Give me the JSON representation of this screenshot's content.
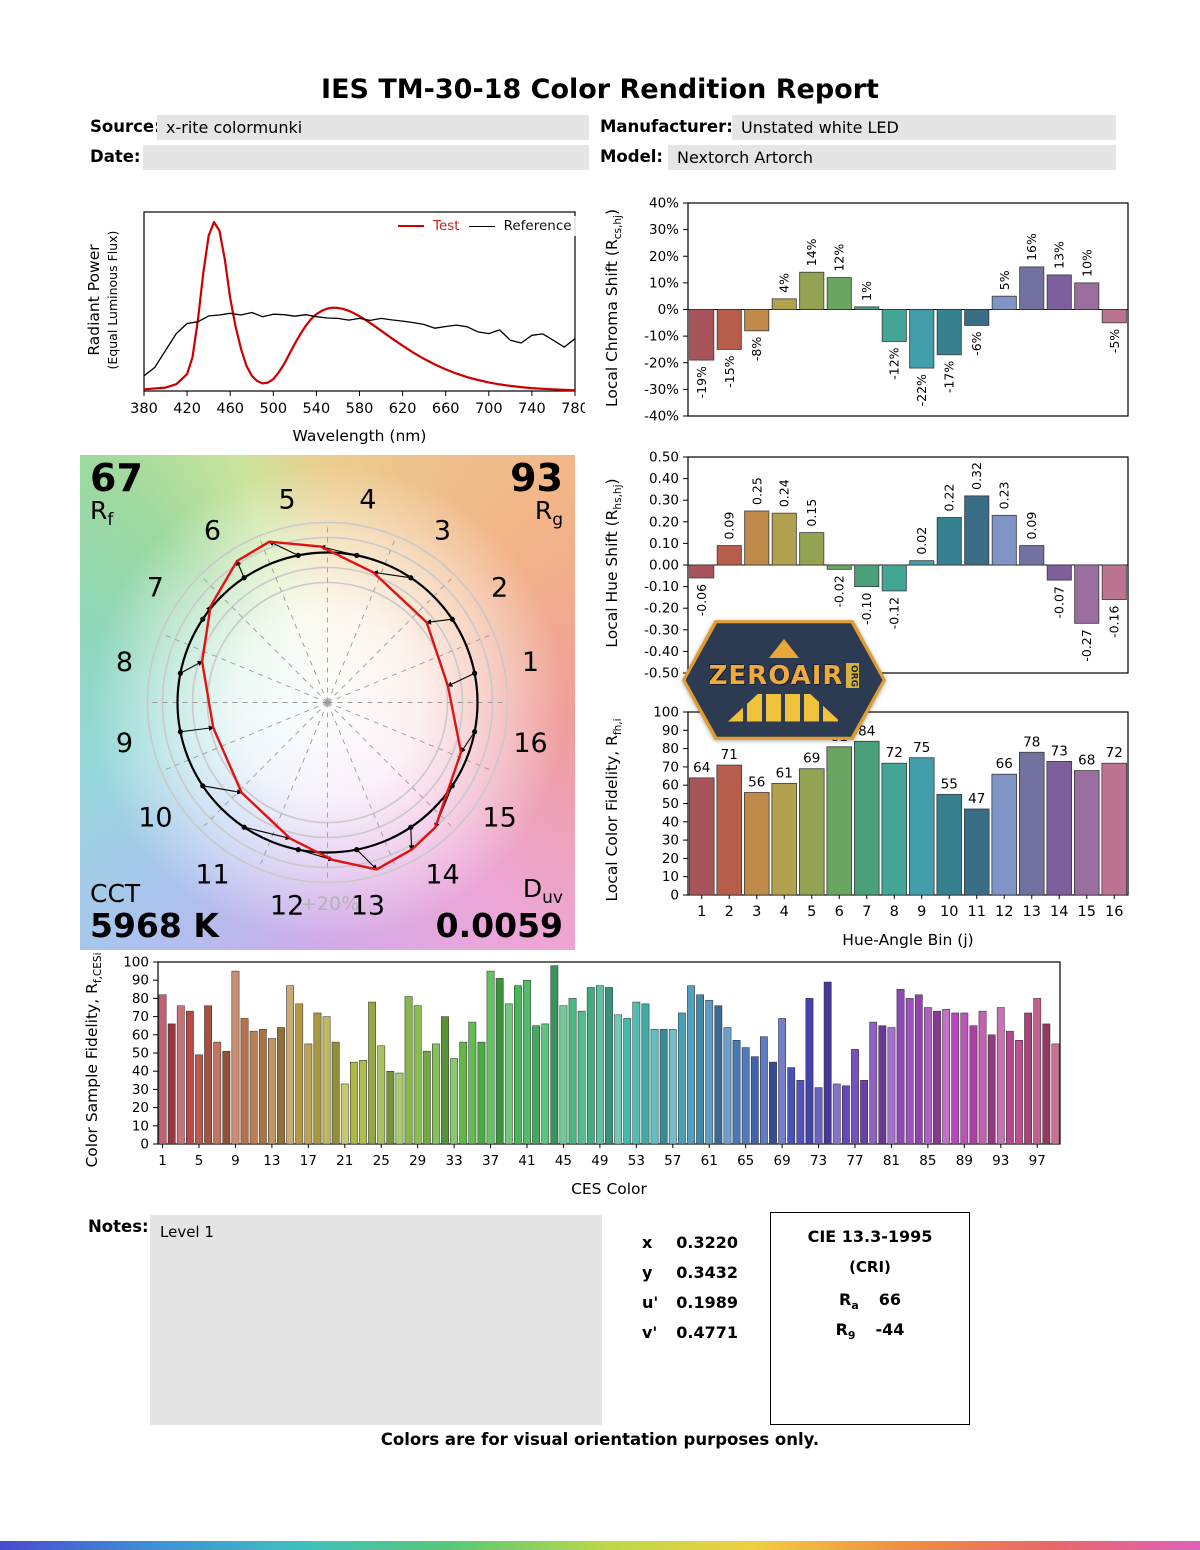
{
  "report": {
    "title": "IES TM-30-18 Color Rendition Report",
    "fields": {
      "source_label": "Source:",
      "source_value": "x-rite colormunki",
      "manufacturer_label": "Manufacturer:",
      "manufacturer_value": "Unstated white LED",
      "date_label": "Date:",
      "date_value": "",
      "model_label": "Model:",
      "model_value": "Nextorch Artorch"
    }
  },
  "hue_bin_colors": [
    "#a8545b",
    "#b65e4b",
    "#c08a4a",
    "#b2a14f",
    "#93a351",
    "#6aa562",
    "#49a079",
    "#43a596",
    "#419eaa",
    "#35818f",
    "#3a6d86",
    "#8095c6",
    "#73719f",
    "#7d5f9c",
    "#9a6f9f",
    "#bc7492"
  ],
  "chart_data": [
    {
      "id": "spd",
      "type": "line",
      "ylabel_line1": "Radiant Power",
      "ylabel_line2": "(Equal Luminous Flux)",
      "xlabel": "Wavelength (nm)",
      "xlim": [
        380,
        780
      ],
      "ylim": [
        0,
        1.06
      ],
      "xticks": [
        380,
        420,
        460,
        500,
        540,
        580,
        620,
        660,
        700,
        740,
        780
      ],
      "legend": [
        {
          "name": "Test",
          "color": "#cc0000"
        },
        {
          "name": "Reference",
          "color": "#000000"
        }
      ],
      "series": [
        {
          "name": "Test",
          "color": "#cc0000",
          "x": [
            380,
            400,
            410,
            420,
            425,
            430,
            435,
            440,
            445,
            450,
            455,
            460,
            465,
            470,
            475,
            480,
            485,
            490,
            495,
            500,
            505,
            510,
            515,
            520,
            525,
            530,
            535,
            540,
            545,
            550,
            555,
            560,
            565,
            570,
            575,
            580,
            585,
            590,
            595,
            600,
            610,
            620,
            630,
            640,
            650,
            660,
            670,
            680,
            690,
            700,
            710,
            720,
            730,
            740,
            750,
            760,
            770,
            780
          ],
          "y": [
            0.01,
            0.02,
            0.04,
            0.1,
            0.2,
            0.42,
            0.7,
            0.92,
            1.0,
            0.95,
            0.78,
            0.55,
            0.38,
            0.25,
            0.15,
            0.09,
            0.06,
            0.045,
            0.05,
            0.07,
            0.11,
            0.16,
            0.22,
            0.28,
            0.335,
            0.385,
            0.425,
            0.455,
            0.475,
            0.488,
            0.493,
            0.492,
            0.486,
            0.475,
            0.46,
            0.443,
            0.423,
            0.402,
            0.38,
            0.357,
            0.312,
            0.268,
            0.227,
            0.19,
            0.157,
            0.128,
            0.103,
            0.082,
            0.065,
            0.051,
            0.039,
            0.03,
            0.023,
            0.017,
            0.013,
            0.01,
            0.007,
            0.005
          ]
        },
        {
          "name": "Reference",
          "color": "#000000",
          "x": [
            380,
            390,
            400,
            410,
            420,
            430,
            440,
            450,
            460,
            470,
            480,
            490,
            500,
            510,
            520,
            530,
            540,
            550,
            560,
            570,
            580,
            590,
            600,
            610,
            620,
            630,
            640,
            650,
            660,
            670,
            680,
            690,
            700,
            710,
            720,
            730,
            740,
            750,
            760,
            770,
            780
          ],
          "y": [
            0.09,
            0.14,
            0.24,
            0.34,
            0.4,
            0.41,
            0.445,
            0.45,
            0.46,
            0.45,
            0.465,
            0.44,
            0.455,
            0.452,
            0.443,
            0.452,
            0.44,
            0.432,
            0.43,
            0.42,
            0.43,
            0.418,
            0.43,
            0.421,
            0.414,
            0.405,
            0.394,
            0.372,
            0.382,
            0.39,
            0.38,
            0.35,
            0.34,
            0.362,
            0.3,
            0.284,
            0.33,
            0.338,
            0.3,
            0.26,
            0.31
          ]
        }
      ]
    },
    {
      "id": "chroma_shift",
      "type": "bar",
      "ylabel_pre": "Local Chroma Shift (R",
      "ylabel_sub": "cs,hj",
      "ylabel_post": ")",
      "ylim": [
        -40,
        40
      ],
      "values": [
        -19,
        -15,
        -8,
        4,
        14,
        12,
        1,
        -12,
        -22,
        -17,
        -6,
        5,
        16,
        13,
        10,
        -5
      ],
      "labels": [
        "-19%",
        "-15%",
        "-8%",
        "4%",
        "14%",
        "12%",
        "1%",
        "-12%",
        "-22%",
        "-17%",
        "-6%",
        "5%",
        "16%",
        "13%",
        "10%",
        "-5%"
      ],
      "yticks": [
        {
          "v": 40,
          "label": "40%"
        },
        {
          "v": 30,
          "label": "30%"
        },
        {
          "v": 20,
          "label": "20%"
        },
        {
          "v": 10,
          "label": "10%"
        },
        {
          "v": 0,
          "label": "0%"
        },
        {
          "v": -10,
          "label": "-10%"
        },
        {
          "v": -20,
          "label": "-20%"
        },
        {
          "v": -30,
          "label": "-30%"
        },
        {
          "v": -40,
          "label": "-40%"
        }
      ]
    },
    {
      "id": "hue_shift",
      "type": "bar",
      "ylabel_pre": "Local Hue Shift (R",
      "ylabel_sub": "hs,hj",
      "ylabel_post": ")",
      "ylim": [
        -0.5,
        0.5
      ],
      "values": [
        -0.06,
        0.09,
        0.25,
        0.24,
        0.15,
        -0.02,
        -0.1,
        -0.12,
        0.02,
        0.22,
        0.32,
        0.23,
        0.09,
        -0.07,
        -0.27,
        -0.16
      ],
      "labels": [
        "-0.06",
        "0.09",
        "0.25",
        "0.24",
        "0.15",
        "-0.02",
        "-0.10",
        "-0.12",
        "0.02",
        "0.22",
        "0.32",
        "0.23",
        "0.09",
        "-0.07",
        "-0.27",
        "-0.16"
      ],
      "yticks": [
        {
          "v": 0.5,
          "label": "0.50"
        },
        {
          "v": 0.4,
          "label": "0.40"
        },
        {
          "v": 0.3,
          "label": "0.30"
        },
        {
          "v": 0.2,
          "label": "0.20"
        },
        {
          "v": 0.1,
          "label": "0.10"
        },
        {
          "v": 0,
          "label": "0.00"
        },
        {
          "v": -0.1,
          "label": "-0.10"
        },
        {
          "v": -0.2,
          "label": "-0.20"
        },
        {
          "v": -0.3,
          "label": "-0.30"
        },
        {
          "v": -0.4,
          "label": "-0.40"
        },
        {
          "v": -0.5,
          "label": "-0.50"
        }
      ]
    },
    {
      "id": "local_fidelity",
      "type": "bar",
      "ylabel_pre": "Local Color Fidelity, R",
      "ylabel_sub": "fh,i",
      "ylabel_post": "",
      "xlabel": "Hue-Angle Bin (j)",
      "ylim": [
        0,
        100
      ],
      "categories": [
        1,
        2,
        3,
        4,
        5,
        6,
        7,
        8,
        9,
        10,
        11,
        12,
        13,
        14,
        15,
        16
      ],
      "values": [
        64,
        71,
        56,
        61,
        69,
        81,
        84,
        72,
        75,
        55,
        47,
        66,
        78,
        73,
        68,
        72
      ],
      "labels": [
        "64",
        "71",
        "56",
        "61",
        "69",
        "81",
        "84",
        "72",
        "75",
        "55",
        "47",
        "66",
        "78",
        "73",
        "68",
        "72"
      ],
      "yticks": [
        {
          "v": 100,
          "label": "100"
        },
        {
          "v": 90,
          "label": "90"
        },
        {
          "v": 80,
          "label": "80"
        },
        {
          "v": 70,
          "label": "70"
        },
        {
          "v": 60,
          "label": "60"
        },
        {
          "v": 50,
          "label": "50"
        },
        {
          "v": 40,
          "label": "40"
        },
        {
          "v": 30,
          "label": "30"
        },
        {
          "v": 20,
          "label": "20"
        },
        {
          "v": 10,
          "label": "10"
        },
        {
          "v": 0,
          "label": "0"
        }
      ]
    },
    {
      "id": "ces_fidelity",
      "type": "bar",
      "ylabel_pre": "Color Sample Fidelity, R",
      "ylabel_sub": "f,CESi",
      "ylabel_post": "",
      "xlabel": "CES Color",
      "ylim": [
        0,
        100
      ],
      "values": [
        82,
        66,
        76,
        73,
        49,
        76,
        56,
        51,
        95,
        69,
        62,
        63,
        58,
        64,
        87,
        77,
        55,
        72,
        70,
        56,
        33,
        45,
        46,
        78,
        54,
        40,
        39,
        81,
        76,
        51,
        55,
        70,
        47,
        56,
        67,
        56,
        95,
        91,
        77,
        87,
        90,
        65,
        66,
        98,
        76,
        80,
        73,
        86,
        87,
        86,
        71,
        69,
        78,
        77,
        63,
        63,
        63,
        72,
        87,
        82,
        79,
        76,
        64,
        57,
        53,
        48,
        59,
        45,
        69,
        42,
        35,
        80,
        31,
        89,
        33,
        32,
        52,
        35,
        67,
        65,
        64,
        85,
        80,
        82,
        75,
        73,
        74,
        72,
        72,
        65,
        73,
        60,
        75,
        62,
        57,
        72,
        80,
        66,
        55
      ],
      "xticks": [
        1,
        5,
        9,
        13,
        17,
        21,
        25,
        29,
        33,
        37,
        41,
        45,
        49,
        53,
        57,
        61,
        65,
        69,
        73,
        77,
        81,
        85,
        89,
        93,
        97
      ],
      "yticks": [
        {
          "v": 100,
          "label": "100"
        },
        {
          "v": 90,
          "label": "90"
        },
        {
          "v": 80,
          "label": "80"
        },
        {
          "v": 70,
          "label": "70"
        },
        {
          "v": 60,
          "label": "60"
        },
        {
          "v": 50,
          "label": "50"
        },
        {
          "v": 40,
          "label": "40"
        },
        {
          "v": 30,
          "label": "30"
        },
        {
          "v": 20,
          "label": "20"
        },
        {
          "v": 10,
          "label": "10"
        },
        {
          "v": 0,
          "label": "0"
        }
      ]
    }
  ],
  "cvg": {
    "rf_value": "67",
    "rf_base": "R",
    "rf_sub": "f",
    "rg_value": "93",
    "rg_base": "R",
    "rg_sub": "g",
    "cct_label": "CCT",
    "cct_value": "5968 K",
    "duv_base": "D",
    "duv_sub": "uv",
    "duv_value": "0.0059",
    "ring_label": "+20%",
    "bin_numbers": [
      1,
      2,
      3,
      4,
      5,
      6,
      7,
      8,
      9,
      10,
      11,
      12,
      13,
      14,
      15,
      16
    ]
  },
  "notes": {
    "label": "Notes:",
    "value": "Level 1"
  },
  "chromaticity": {
    "rows": [
      {
        "label": "x",
        "value": "0.3220"
      },
      {
        "label": "y",
        "value": "0.3432"
      },
      {
        "label": "u'",
        "value": "0.1989"
      },
      {
        "label": "v'",
        "value": "0.4771"
      }
    ]
  },
  "cri": {
    "title": "CIE 13.3-1995",
    "subtitle": "(CRI)",
    "ra_base": "R",
    "ra_sub": "a",
    "ra_value": "66",
    "r9_base": "R",
    "r9_sub": "9",
    "r9_value": "-44"
  },
  "logo": {
    "text": "ZEROAIR",
    "suffix": "ORG"
  },
  "footer": "Colors are for visual orientation purposes only."
}
